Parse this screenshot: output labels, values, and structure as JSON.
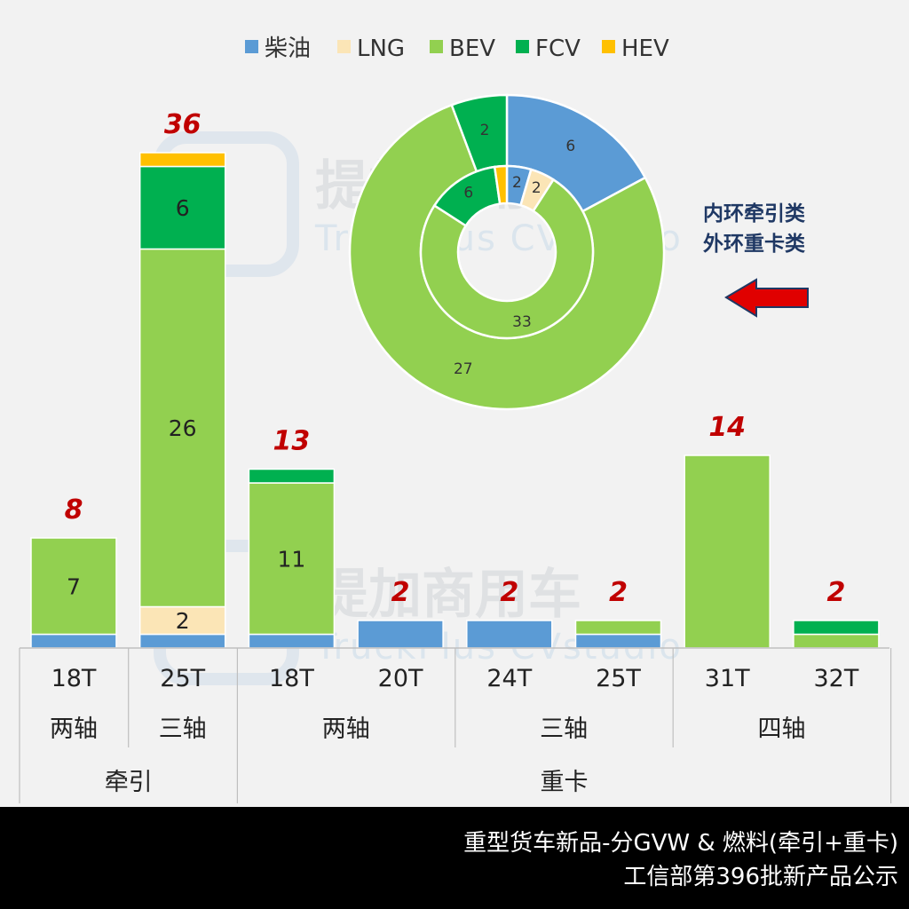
{
  "legend": [
    {
      "name": "柴油",
      "color": "#5b9bd5"
    },
    {
      "name": "LNG",
      "color": "#fbe5b6"
    },
    {
      "name": "BEV",
      "color": "#92d050"
    },
    {
      "name": "FCV",
      "color": "#00b050"
    },
    {
      "name": "HEV",
      "color": "#ffc000"
    }
  ],
  "chart_data": [
    {
      "type": "bar",
      "stacked": true,
      "categories": [
        "18T",
        "25T",
        "18T",
        "20T",
        "24T",
        "25T",
        "31T",
        "32T"
      ],
      "axle_groups": [
        {
          "label": "两轴",
          "span": [
            0,
            0
          ]
        },
        {
          "label": "三轴",
          "span": [
            1,
            1
          ]
        },
        {
          "label": "两轴",
          "span": [
            2,
            3
          ]
        },
        {
          "label": "三轴",
          "span": [
            4,
            5
          ]
        },
        {
          "label": "四轴",
          "span": [
            6,
            7
          ]
        }
      ],
      "type_groups": [
        {
          "label": "牵引",
          "span": [
            0,
            1
          ]
        },
        {
          "label": "重卡",
          "span": [
            2,
            7
          ]
        }
      ],
      "series": [
        {
          "name": "柴油",
          "values": [
            1,
            1,
            1,
            2,
            2,
            1,
            0,
            0
          ]
        },
        {
          "name": "LNG",
          "values": [
            0,
            2,
            0,
            0,
            0,
            0,
            0,
            0
          ]
        },
        {
          "name": "BEV",
          "values": [
            7,
            26,
            11,
            0,
            0,
            1,
            14,
            1
          ]
        },
        {
          "name": "FCV",
          "values": [
            0,
            6,
            1,
            0,
            0,
            0,
            0,
            1
          ]
        },
        {
          "name": "HEV",
          "values": [
            0,
            1,
            0,
            0,
            0,
            0,
            0,
            0
          ]
        }
      ],
      "segment_labels": [
        {
          "series": "BEV",
          "index": 0,
          "text": "7"
        },
        {
          "series": "LNG",
          "index": 1,
          "text": "2"
        },
        {
          "series": "BEV",
          "index": 1,
          "text": "26"
        },
        {
          "series": "FCV",
          "index": 1,
          "text": "6"
        },
        {
          "series": "BEV",
          "index": 2,
          "text": "11"
        }
      ],
      "totals": [
        "8",
        "36",
        "13",
        "2",
        "2",
        "2",
        "14",
        "2"
      ],
      "ylim": [
        0,
        36
      ]
    },
    {
      "type": "pie",
      "subtype": "double-donut",
      "inner_ring": {
        "slices": [
          {
            "name": "柴油",
            "value": 2,
            "label": "2"
          },
          {
            "name": "LNG",
            "value": 2,
            "label": "2"
          },
          {
            "name": "BEV",
            "value": 33,
            "label": "33"
          },
          {
            "name": "FCV",
            "value": 6,
            "label": "6"
          },
          {
            "name": "HEV",
            "value": 1,
            "label": ""
          }
        ]
      },
      "outer_ring": {
        "slices": [
          {
            "name": "柴油",
            "value": 6,
            "label": "6"
          },
          {
            "name": "BEV",
            "value": 27,
            "label": "27"
          },
          {
            "name": "FCV",
            "value": 2,
            "label": "2"
          }
        ]
      }
    }
  ],
  "note": {
    "line1": "内环牵引类",
    "line2": "外环重卡类"
  },
  "watermark": {
    "cn": "提加商用车",
    "en": "TruckPlus CVstudio"
  },
  "footer": {
    "line1": "重型货车新品-分GVW & 燃料(牵引+重卡)",
    "line2": "工信部第396批新产品公示"
  }
}
